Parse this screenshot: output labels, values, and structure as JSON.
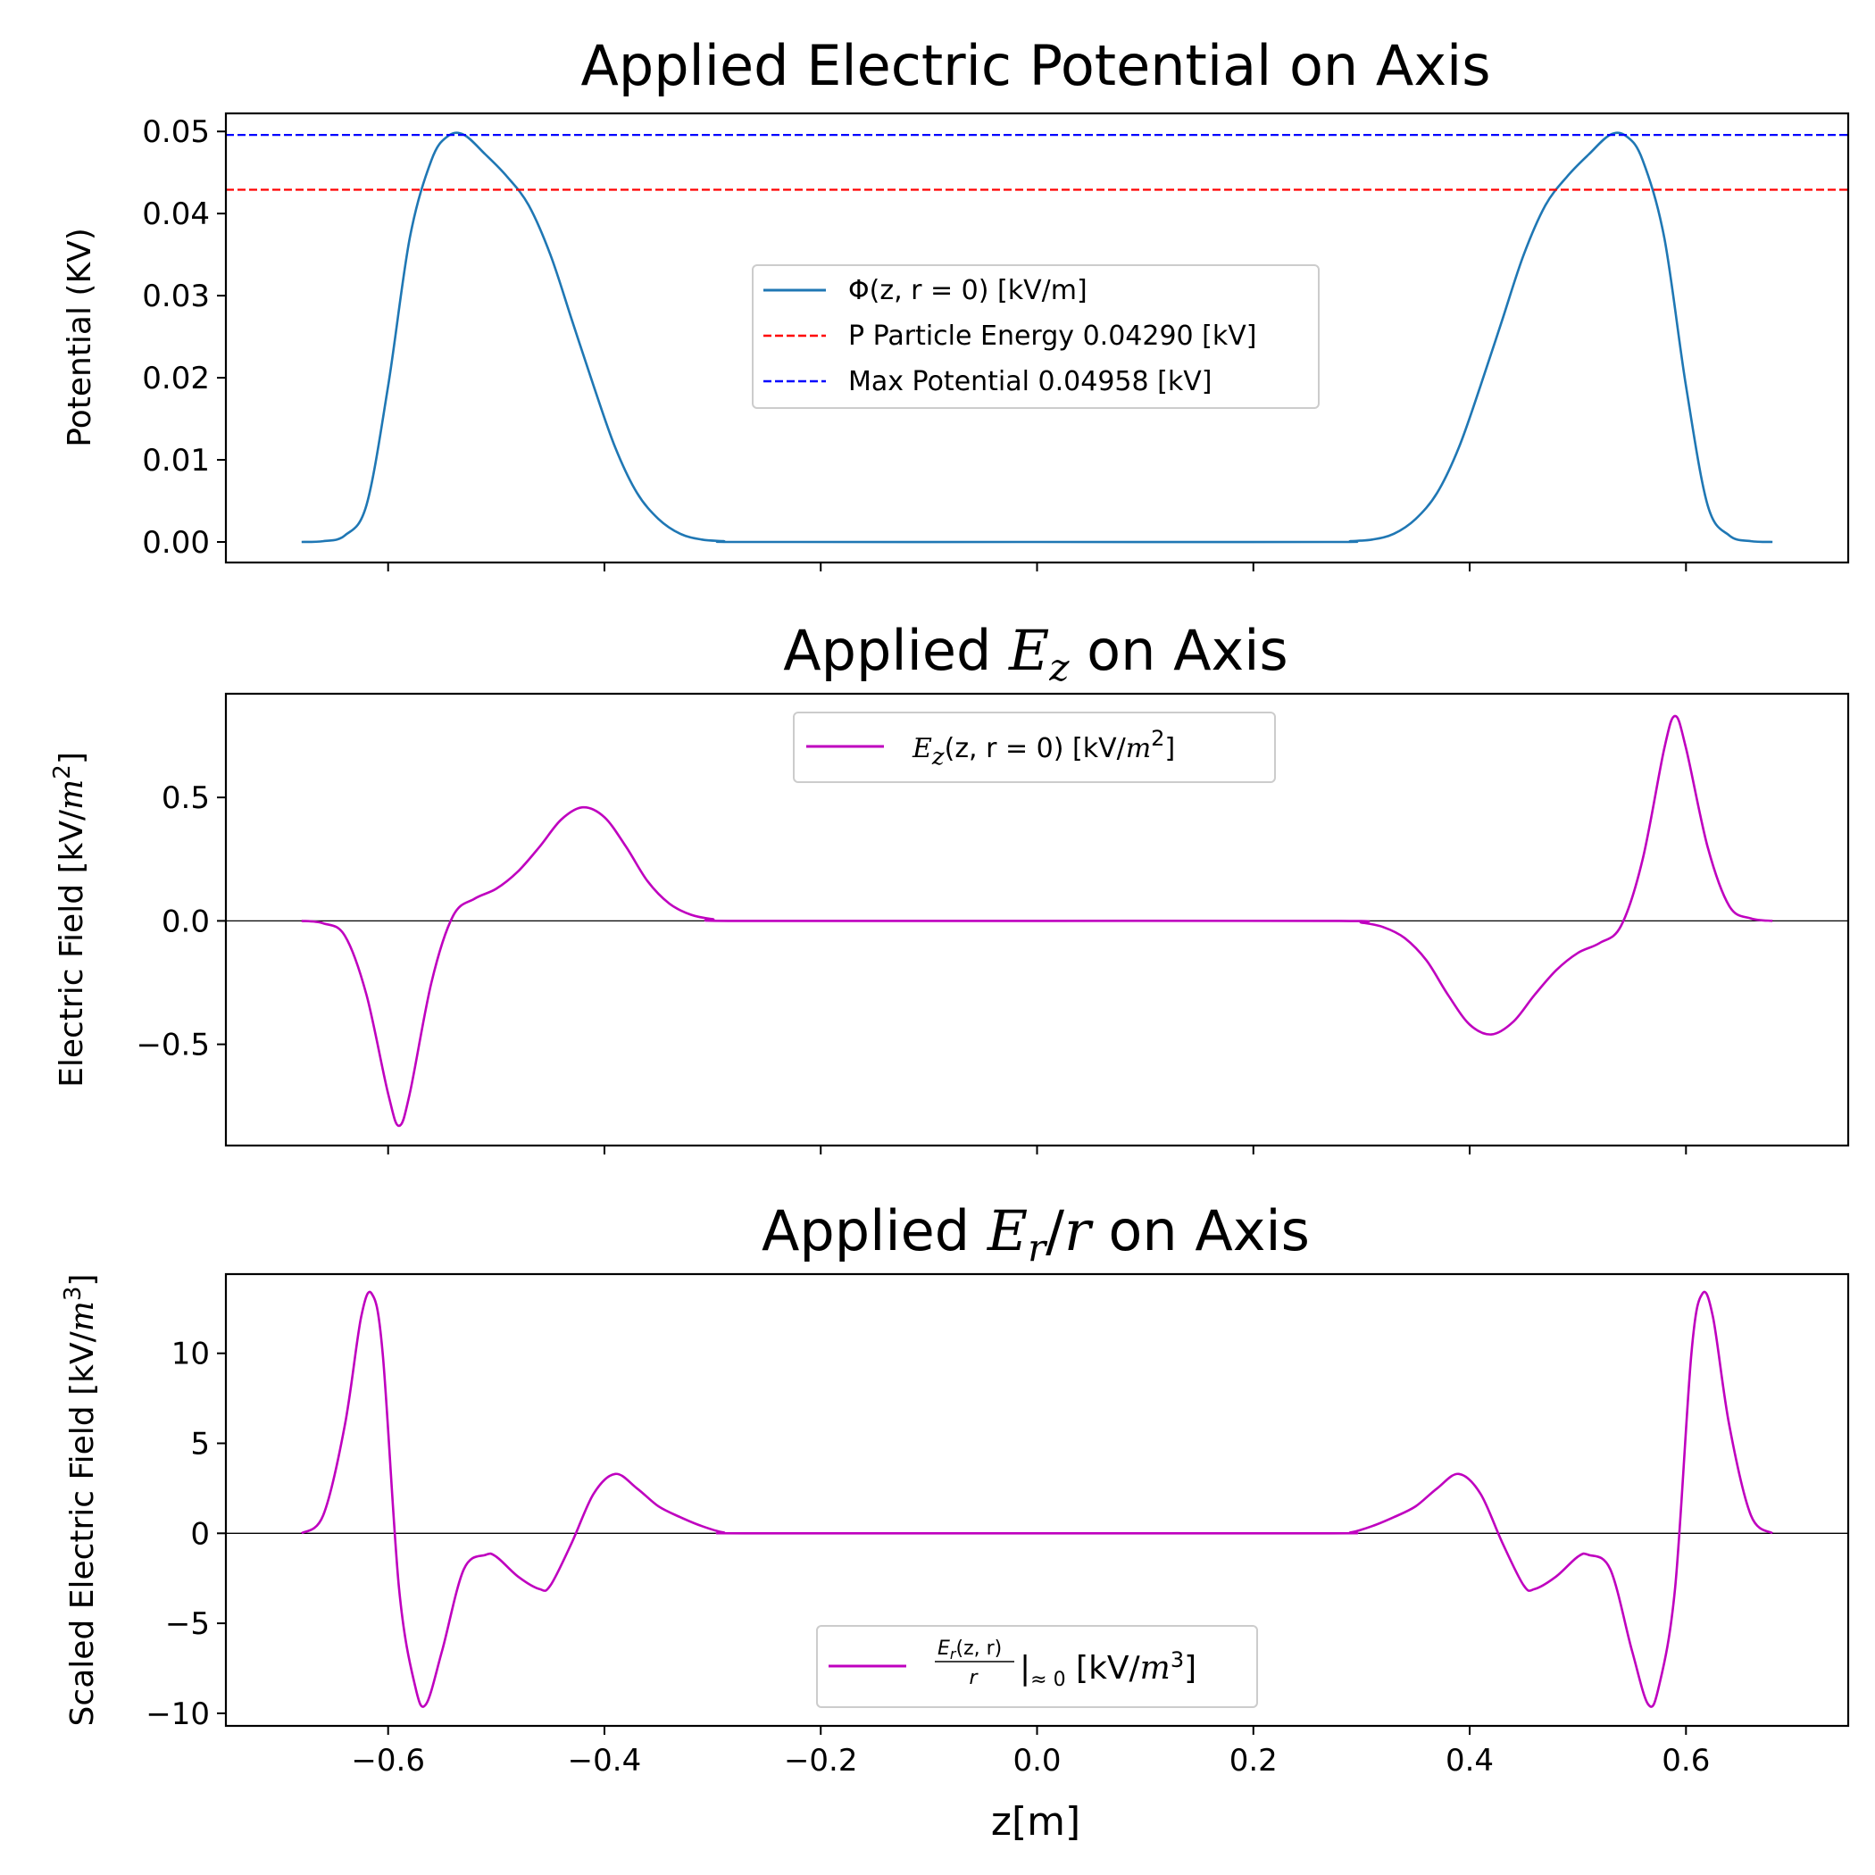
{
  "chart_data": [
    {
      "type": "line",
      "title": "Applied Electric Potential on Axis",
      "xlabel": "",
      "ylabel": "Potential (KV)",
      "xlim": [
        -0.75,
        0.75
      ],
      "ylim": [
        -0.0025,
        0.0522
      ],
      "xticks": [
        -0.6,
        -0.4,
        -0.2,
        0.0,
        0.2,
        0.4,
        0.6
      ],
      "xtick_labels_shown": false,
      "yticks": [
        0.0,
        0.01,
        0.02,
        0.03,
        0.04,
        0.05
      ],
      "ytick_labels": [
        "0.00",
        "0.01",
        "0.02",
        "0.03",
        "0.04",
        "0.05"
      ],
      "legend_position": "center",
      "series": [
        {
          "name": "Φ(z, r = 0) [kV/m]",
          "color": "#1f77b4",
          "style": "solid",
          "x": [
            -0.68,
            -0.66,
            -0.64,
            -0.62,
            -0.6,
            -0.58,
            -0.56,
            -0.545,
            -0.53,
            -0.51,
            -0.49,
            -0.47,
            -0.45,
            -0.43,
            -0.41,
            -0.39,
            -0.37,
            -0.35,
            -0.33,
            -0.31,
            -0.29,
            -0.27,
            0.0,
            0.27,
            0.29,
            0.31,
            0.33,
            0.35,
            0.37,
            0.39,
            0.41,
            0.43,
            0.45,
            0.47,
            0.49,
            0.51,
            0.53,
            0.545,
            0.56,
            0.58,
            0.6,
            0.62,
            0.64,
            0.66,
            0.68
          ],
          "y": [
            0.0,
            0.0001,
            0.0008,
            0.0045,
            0.019,
            0.037,
            0.0465,
            0.0494,
            0.0496,
            0.0472,
            0.0445,
            0.041,
            0.035,
            0.027,
            0.019,
            0.0115,
            0.006,
            0.0028,
            0.001,
            0.0003,
            0.0001,
            0.0,
            0.0,
            0.0,
            0.0001,
            0.0003,
            0.001,
            0.0028,
            0.006,
            0.0115,
            0.019,
            0.027,
            0.035,
            0.041,
            0.0445,
            0.0472,
            0.0496,
            0.0494,
            0.0465,
            0.037,
            0.019,
            0.0045,
            0.0008,
            0.0001,
            0.0
          ]
        },
        {
          "name": "P Particle Energy 0.04290 [kV]",
          "color": "#ff0000",
          "style": "dashed",
          "hline": 0.0429
        },
        {
          "name": "Max Potential 0.04958 [kV]",
          "color": "#0000ff",
          "style": "dashed",
          "hline": 0.04958
        }
      ]
    },
    {
      "type": "line",
      "title_main": "Applied ",
      "title_var": "E",
      "title_sub": "z",
      "title_rest": " on Axis",
      "xlabel": "",
      "ylabel_main": "Electric Field [kV/",
      "ylabel_var": "m",
      "ylabel_sup": "2",
      "ylabel_end": "]",
      "xlim": [
        -0.75,
        0.75
      ],
      "ylim": [
        -0.91,
        0.92
      ],
      "xticks": [
        -0.6,
        -0.4,
        -0.2,
        0.0,
        0.2,
        0.4,
        0.6
      ],
      "xtick_labels_shown": false,
      "yticks": [
        -0.5,
        0.0,
        0.5
      ],
      "ytick_labels": [
        "−0.5",
        "0.0",
        "0.5"
      ],
      "zero_line": true,
      "legend_position": "upper center",
      "series": [
        {
          "name_var": "E",
          "name_sub": "z",
          "name_mid": "(z, r = 0) [kV/",
          "name_var2": "m",
          "name_sup": "2",
          "name_end": "]",
          "color": "#bf00bf",
          "x": [
            -0.68,
            -0.66,
            -0.64,
            -0.62,
            -0.6,
            -0.59,
            -0.58,
            -0.56,
            -0.54,
            -0.52,
            -0.5,
            -0.48,
            -0.46,
            -0.44,
            -0.42,
            -0.4,
            -0.38,
            -0.36,
            -0.34,
            -0.32,
            -0.3,
            -0.28,
            0.0,
            0.28,
            0.3,
            0.32,
            0.34,
            0.36,
            0.38,
            0.4,
            0.42,
            0.44,
            0.46,
            0.48,
            0.5,
            0.52,
            0.54,
            0.56,
            0.58,
            0.59,
            0.6,
            0.62,
            0.64,
            0.66,
            0.68
          ],
          "y": [
            0.0,
            -0.01,
            -0.06,
            -0.3,
            -0.7,
            -0.83,
            -0.7,
            -0.25,
            0.02,
            0.09,
            0.13,
            0.2,
            0.3,
            0.41,
            0.46,
            0.42,
            0.3,
            0.16,
            0.07,
            0.025,
            0.007,
            0.0,
            0.0,
            0.0,
            -0.007,
            -0.025,
            -0.07,
            -0.16,
            -0.3,
            -0.42,
            -0.46,
            -0.41,
            -0.3,
            -0.2,
            -0.13,
            -0.09,
            -0.02,
            0.25,
            0.7,
            0.83,
            0.7,
            0.3,
            0.06,
            0.01,
            0.0
          ]
        }
      ]
    },
    {
      "type": "line",
      "title_main": "Applied ",
      "title_var": "E",
      "title_sub": "r",
      "title_slash": "/",
      "title_var2": "r",
      "title_rest": " on Axis",
      "xlabel": "z[m]",
      "ylabel_main": "Scaled Electric Field [kV/",
      "ylabel_var": "m",
      "ylabel_sup": "3",
      "ylabel_end": "]",
      "xlim": [
        -0.75,
        0.75
      ],
      "ylim": [
        -10.7,
        14.4
      ],
      "xticks": [
        -0.6,
        -0.4,
        -0.2,
        0.0,
        0.2,
        0.4,
        0.6
      ],
      "xtick_labels": [
        "−0.6",
        "−0.4",
        "−0.2",
        "0.0",
        "0.2",
        "0.4",
        "0.6"
      ],
      "yticks": [
        -10,
        -5,
        0,
        5,
        10
      ],
      "ytick_labels": [
        "−10",
        "−5",
        "0",
        "5",
        "10"
      ],
      "zero_line": true,
      "legend_position": "lower center",
      "series": [
        {
          "frac_num": "E",
          "frac_num_sub": "r",
          "frac_num_rest": "(z, r)",
          "frac_den": "r",
          "name_bar": "|",
          "name_eval": "≈ 0",
          "name_mid": " [kV/",
          "name_var2": "m",
          "name_sup": "3",
          "name_end": "]",
          "color": "#bf00bf",
          "x": [
            -0.68,
            -0.66,
            -0.64,
            -0.625,
            -0.615,
            -0.605,
            -0.59,
            -0.575,
            -0.565,
            -0.55,
            -0.53,
            -0.51,
            -0.5,
            -0.48,
            -0.46,
            -0.45,
            -0.43,
            -0.41,
            -0.39,
            -0.37,
            -0.35,
            -0.33,
            -0.31,
            -0.29,
            -0.27,
            0.0,
            0.27,
            0.29,
            0.31,
            0.33,
            0.35,
            0.37,
            0.39,
            0.41,
            0.43,
            0.45,
            0.46,
            0.48,
            0.5,
            0.51,
            0.53,
            0.55,
            0.565,
            0.575,
            0.59,
            0.605,
            0.615,
            0.625,
            0.64,
            0.66,
            0.68
          ],
          "y": [
            0.0,
            1.0,
            6.0,
            12.0,
            13.3,
            10.0,
            -3.0,
            -8.5,
            -9.5,
            -6.5,
            -2.0,
            -1.2,
            -1.3,
            -2.4,
            -3.1,
            -2.9,
            -0.5,
            2.2,
            3.3,
            2.5,
            1.5,
            0.9,
            0.4,
            0.05,
            0.0,
            0.0,
            0.0,
            0.05,
            0.4,
            0.9,
            1.5,
            2.5,
            3.3,
            2.2,
            -0.5,
            -2.9,
            -3.1,
            -2.4,
            -1.3,
            -1.2,
            -2.0,
            -6.5,
            -9.5,
            -8.5,
            -3.0,
            10.0,
            13.3,
            12.0,
            6.0,
            1.0,
            0.0
          ]
        }
      ]
    }
  ]
}
